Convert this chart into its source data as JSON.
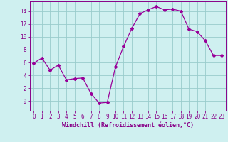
{
  "x": [
    0,
    1,
    2,
    3,
    4,
    5,
    6,
    7,
    8,
    9,
    10,
    11,
    12,
    13,
    14,
    15,
    16,
    17,
    18,
    19,
    20,
    21,
    22,
    23
  ],
  "y": [
    5.9,
    6.7,
    4.8,
    5.6,
    3.3,
    3.5,
    3.6,
    1.2,
    -0.3,
    -0.2,
    5.3,
    8.5,
    11.3,
    13.6,
    14.2,
    14.7,
    14.2,
    14.3,
    14.0,
    11.2,
    10.8,
    9.4,
    7.1,
    7.1
  ],
  "line_color": "#990099",
  "marker": "D",
  "markersize": 2,
  "bg_color": "#cff0f0",
  "grid_color": "#99cccc",
  "xlabel": "Windchill (Refroidissement éolien,°C)",
  "ylim": [
    -1.5,
    15.5
  ],
  "xlim": [
    -0.5,
    23.5
  ],
  "yticks": [
    0,
    2,
    4,
    6,
    8,
    10,
    12,
    14
  ],
  "ytick_labels": [
    "-0",
    "2",
    "4",
    "6",
    "8",
    "10",
    "12",
    "14"
  ],
  "xticks": [
    0,
    1,
    2,
    3,
    4,
    5,
    6,
    7,
    8,
    9,
    10,
    11,
    12,
    13,
    14,
    15,
    16,
    17,
    18,
    19,
    20,
    21,
    22,
    23
  ],
  "label_color": "#880088",
  "tick_color": "#880088",
  "axis_color": "#880088",
  "font_size": 5.5,
  "xlabel_fontsize": 6.0,
  "linewidth": 0.9
}
